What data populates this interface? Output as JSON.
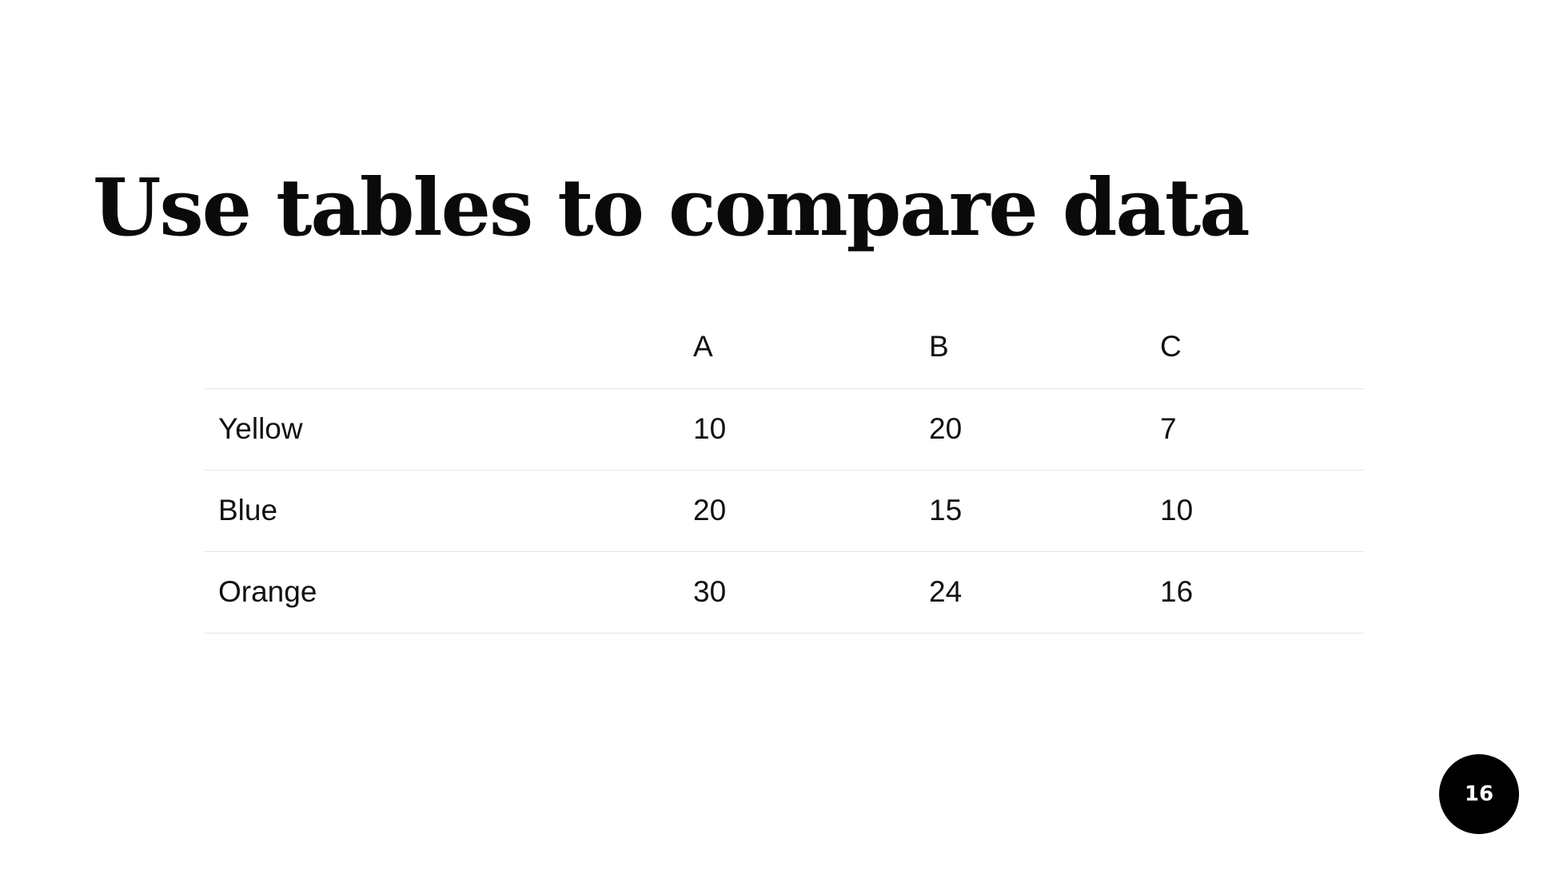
{
  "slide": {
    "title": "Use tables to compare data",
    "page_number": "16"
  },
  "table": {
    "columns": [
      "",
      "A",
      "B",
      "C"
    ],
    "rows": [
      {
        "label": "Yellow",
        "values": [
          "10",
          "20",
          "7"
        ]
      },
      {
        "label": "Blue",
        "values": [
          "20",
          "15",
          "10"
        ]
      },
      {
        "label": "Orange",
        "values": [
          "30",
          "24",
          "16"
        ]
      }
    ]
  }
}
